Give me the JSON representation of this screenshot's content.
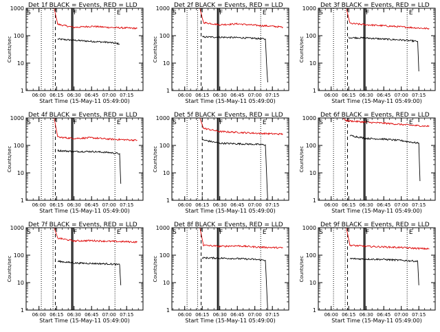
{
  "common": {
    "ylabel": "Counts/sec",
    "xlabel": "Start Time (15-May-11 05:49:00)",
    "x_ticks": [
      "06:00",
      "06:15",
      "06:30",
      "06:45",
      "07:00",
      "07:15"
    ],
    "y_ticks": [
      "1",
      "10",
      "100",
      "1000"
    ],
    "colors": {
      "events": "#000000",
      "lld": "#dd0000",
      "axes": "#000000"
    }
  },
  "chart_data": [
    {
      "type": "line",
      "title": "Det 1f BLACK = Events, RED = LLD",
      "yscale": "log",
      "xlim": [
        "05:49",
        "07:29"
      ],
      "ylim": [
        1,
        1000
      ],
      "markers": [
        {
          "label": "S",
          "t": "05:49"
        },
        {
          "label": "F",
          "t": "06:29"
        },
        {
          "label": "E",
          "t": "07:06"
        }
      ],
      "dotted_lines": [
        "06:02",
        "06:12",
        "07:05"
      ],
      "dashed_line": "06:14",
      "solid_lines": [
        "06:28",
        "06:29"
      ],
      "series": [
        {
          "name": "BLACK = Events",
          "x": [
            "06:16",
            "06:30",
            "06:45",
            "07:00",
            "07:09"
          ],
          "values": [
            75,
            68,
            62,
            57,
            50
          ]
        },
        {
          "name": "RED = LLD",
          "x": [
            "05:49",
            "06:13",
            "06:16",
            "06:30",
            "06:45",
            "07:00",
            "07:15",
            "07:24"
          ],
          "values": [
            1000,
            1000,
            260,
            200,
            220,
            200,
            190,
            185
          ]
        }
      ]
    },
    {
      "type": "line",
      "title": "Det 2f BLACK = Events, RED = LLD",
      "yscale": "log",
      "xlim": [
        "05:49",
        "07:29"
      ],
      "ylim": [
        1,
        1000
      ],
      "markers": [
        {
          "label": "S",
          "t": "05:49"
        },
        {
          "label": "F",
          "t": "06:29"
        },
        {
          "label": "E",
          "t": "07:06"
        }
      ],
      "dotted_lines": [
        "06:02",
        "06:11",
        "07:05"
      ],
      "dashed_line": "06:14",
      "solid_lines": [
        "06:28",
        "06:29"
      ],
      "series": [
        {
          "name": "BLACK = Events",
          "x": [
            "06:15",
            "06:30",
            "06:45",
            "07:00",
            "07:09",
            "07:10",
            "07:11"
          ],
          "values": [
            90,
            88,
            85,
            80,
            75,
            10,
            2
          ]
        },
        {
          "name": "RED = LLD",
          "x": [
            "05:49",
            "06:13",
            "06:16",
            "06:30",
            "06:45",
            "07:00",
            "07:15",
            "07:24"
          ],
          "values": [
            1000,
            1000,
            300,
            250,
            270,
            240,
            220,
            205
          ]
        }
      ]
    },
    {
      "type": "line",
      "title": "Det 3f BLACK = Events, RED = LLD",
      "yscale": "log",
      "xlim": [
        "05:49",
        "07:29"
      ],
      "ylim": [
        1,
        1000
      ],
      "markers": [
        {
          "label": "S",
          "t": "05:49"
        },
        {
          "label": "F",
          "t": "06:29"
        },
        {
          "label": "E",
          "t": "07:06"
        }
      ],
      "dotted_lines": [
        "06:02",
        "06:12",
        "07:05"
      ],
      "dashed_line": "06:14",
      "solid_lines": [
        "06:28",
        "06:29"
      ],
      "series": [
        {
          "name": "BLACK = Events",
          "x": [
            "06:15",
            "06:30",
            "06:45",
            "07:00",
            "07:14",
            "07:15"
          ],
          "values": [
            85,
            82,
            75,
            70,
            62,
            5
          ]
        },
        {
          "name": "RED = LLD",
          "x": [
            "05:49",
            "06:13",
            "06:16",
            "06:30",
            "06:45",
            "07:00",
            "07:15",
            "07:24"
          ],
          "values": [
            1000,
            1000,
            280,
            250,
            230,
            210,
            190,
            180
          ]
        }
      ]
    },
    {
      "type": "line",
      "title": "Det 4f BLACK = Events, RED = LLD",
      "yscale": "log",
      "xlim": [
        "05:49",
        "07:29"
      ],
      "ylim": [
        1,
        1000
      ],
      "markers": [
        {
          "label": "S",
          "t": "05:49"
        },
        {
          "label": "F",
          "t": "06:29"
        },
        {
          "label": "E",
          "t": "07:06"
        }
      ],
      "dotted_lines": [
        "06:02",
        "06:12",
        "07:05"
      ],
      "dashed_line": "06:14",
      "solid_lines": [
        "06:28",
        "06:29"
      ],
      "series": [
        {
          "name": "BLACK = Events",
          "x": [
            "06:16",
            "06:30",
            "06:45",
            "07:00",
            "07:09",
            "07:10"
          ],
          "values": [
            65,
            60,
            60,
            55,
            50,
            4
          ]
        },
        {
          "name": "RED = LLD",
          "x": [
            "05:49",
            "06:13",
            "06:16",
            "06:30",
            "06:45",
            "07:00",
            "07:15",
            "07:24"
          ],
          "values": [
            1000,
            1000,
            200,
            180,
            190,
            170,
            160,
            155
          ]
        }
      ]
    },
    {
      "type": "line",
      "title": "Det 5f BLACK = Events, RED = LLD",
      "yscale": "log",
      "xlim": [
        "05:49",
        "07:29"
      ],
      "ylim": [
        1,
        1000
      ],
      "markers": [
        {
          "label": "S",
          "t": "05:49"
        },
        {
          "label": "F",
          "t": "06:29"
        },
        {
          "label": "E",
          "t": "07:06"
        }
      ],
      "dotted_lines": [
        "06:02",
        "06:11",
        "07:05"
      ],
      "dashed_line": "06:15",
      "solid_lines": [
        "06:28",
        "06:29"
      ],
      "series": [
        {
          "name": "BLACK = Events",
          "x": [
            "06:15",
            "06:30",
            "06:45",
            "07:00",
            "07:09",
            "07:10",
            "07:11"
          ],
          "values": [
            160,
            120,
            115,
            110,
            105,
            10,
            1
          ]
        },
        {
          "name": "RED = LLD",
          "x": [
            "05:49",
            "06:13",
            "06:16",
            "06:30",
            "06:45",
            "07:00",
            "07:15",
            "07:24"
          ],
          "values": [
            1000,
            1000,
            420,
            320,
            300,
            280,
            265,
            260
          ]
        }
      ]
    },
    {
      "type": "line",
      "title": "Det 6f BLACK = Events, RED = LLD",
      "yscale": "log",
      "xlim": [
        "05:49",
        "07:29"
      ],
      "ylim": [
        1,
        1000
      ],
      "markers": [
        {
          "label": "S",
          "t": "05:49"
        },
        {
          "label": "F",
          "t": "06:29"
        },
        {
          "label": "E",
          "t": "07:06"
        }
      ],
      "dotted_lines": [
        "06:02",
        "06:12",
        "07:05"
      ],
      "dashed_line": "06:14",
      "solid_lines": [
        "06:28",
        "06:29"
      ],
      "series": [
        {
          "name": "BLACK = Events",
          "x": [
            "06:16",
            "06:30",
            "06:45",
            "07:00",
            "07:15",
            "07:16"
          ],
          "values": [
            230,
            180,
            170,
            150,
            120,
            5
          ]
        },
        {
          "name": "RED = LLD",
          "x": [
            "05:49",
            "06:10",
            "06:13",
            "06:30",
            "06:45",
            "07:00",
            "07:15",
            "07:24"
          ],
          "values": [
            1000,
            1000,
            800,
            700,
            650,
            580,
            520,
            500
          ]
        }
      ]
    },
    {
      "type": "line",
      "title": "Det 7f BLACK = Events, RED = LLD",
      "yscale": "log",
      "xlim": [
        "05:49",
        "07:29"
      ],
      "ylim": [
        1,
        1000
      ],
      "markers": [
        {
          "label": "S",
          "t": "05:49"
        },
        {
          "label": "F",
          "t": "06:29"
        },
        {
          "label": "E",
          "t": "07:06"
        }
      ],
      "dotted_lines": [
        "06:02",
        "06:12",
        "07:05"
      ],
      "dashed_line": "06:14",
      "solid_lines": [
        "06:28",
        "06:29"
      ],
      "series": [
        {
          "name": "BLACK = Events",
          "x": [
            "06:16",
            "06:30",
            "06:45",
            "07:00",
            "07:09",
            "07:10"
          ],
          "values": [
            60,
            52,
            50,
            48,
            45,
            8
          ]
        },
        {
          "name": "RED = LLD",
          "x": [
            "05:49",
            "06:13",
            "06:16",
            "06:30",
            "06:45",
            "07:00",
            "07:15",
            "07:24"
          ],
          "values": [
            1000,
            1000,
            420,
            330,
            340,
            320,
            310,
            300
          ]
        }
      ]
    },
    {
      "type": "line",
      "title": "Det 8f BLACK = Events, RED = LLD",
      "yscale": "log",
      "xlim": [
        "05:49",
        "07:29"
      ],
      "ylim": [
        1,
        1000
      ],
      "markers": [
        {
          "label": "S",
          "t": "05:49"
        },
        {
          "label": "F",
          "t": "06:29"
        },
        {
          "label": "E",
          "t": "07:06"
        }
      ],
      "dotted_lines": [
        "06:02",
        "06:11",
        "07:05"
      ],
      "dashed_line": "06:14",
      "solid_lines": [
        "06:28",
        "06:29"
      ],
      "series": [
        {
          "name": "BLACK = Events",
          "x": [
            "06:15",
            "06:30",
            "06:45",
            "07:00",
            "07:09",
            "07:10",
            "07:11"
          ],
          "values": [
            80,
            78,
            75,
            70,
            65,
            8,
            1
          ]
        },
        {
          "name": "RED = LLD",
          "x": [
            "05:49",
            "06:13",
            "06:16",
            "06:30",
            "06:45",
            "07:00",
            "07:15",
            "07:24"
          ],
          "values": [
            1000,
            1000,
            230,
            210,
            220,
            200,
            190,
            185
          ]
        }
      ]
    },
    {
      "type": "line",
      "title": "Det 9f BLACK = Events, RED = LLD",
      "yscale": "log",
      "xlim": [
        "05:49",
        "07:29"
      ],
      "ylim": [
        1,
        1000
      ],
      "markers": [
        {
          "label": "S",
          "t": "05:49"
        },
        {
          "label": "F",
          "t": "06:29"
        },
        {
          "label": "E",
          "t": "07:06"
        }
      ],
      "dotted_lines": [
        "06:02",
        "06:12",
        "07:05"
      ],
      "dashed_line": "06:14",
      "solid_lines": [
        "06:28",
        "06:29"
      ],
      "series": [
        {
          "name": "BLACK = Events",
          "x": [
            "06:16",
            "06:30",
            "06:45",
            "07:00",
            "07:14",
            "07:15"
          ],
          "values": [
            75,
            72,
            70,
            65,
            60,
            8
          ]
        },
        {
          "name": "RED = LLD",
          "x": [
            "05:49",
            "06:13",
            "06:16",
            "06:30",
            "06:45",
            "07:00",
            "07:15",
            "07:24"
          ],
          "values": [
            1000,
            1000,
            230,
            210,
            200,
            190,
            175,
            170
          ]
        }
      ]
    }
  ]
}
